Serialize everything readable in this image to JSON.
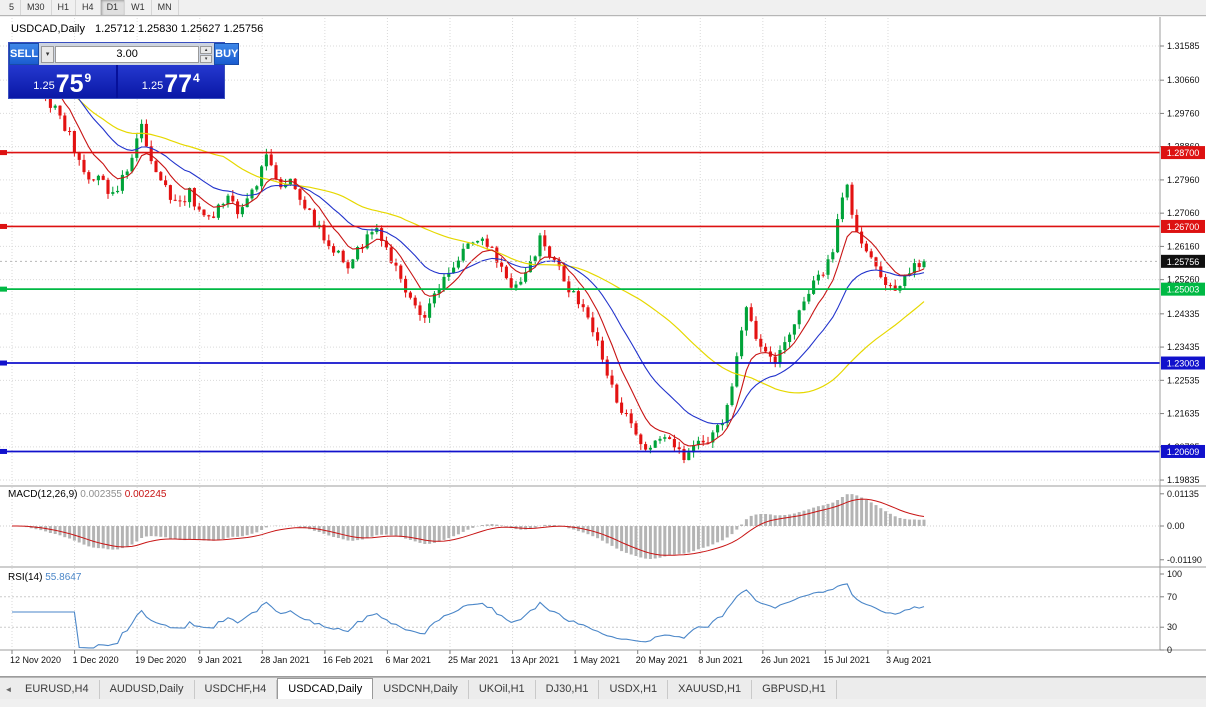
{
  "colors": {
    "bull": "#00a339",
    "bear": "#e31212",
    "ma_fast": "#c81414",
    "ma_mid": "#2233cc",
    "ma_slow": "#e6d800",
    "macd_hist": "#b4b4b4",
    "macd_signal": "#c81414",
    "rsi": "#4a86c8",
    "grid": "#dadada",
    "axis_text": "#111111",
    "separator": "#9c9c9c"
  },
  "icons": {
    "tab_scroll_left": "◄",
    "volume_dropdown": "▾",
    "stepper_up": "▴",
    "stepper_down": "▾"
  },
  "toolbar": {
    "timeframes": [
      {
        "label": "5"
      },
      {
        "label": "M30"
      },
      {
        "label": "H1"
      },
      {
        "label": "H4"
      },
      {
        "label": "D1",
        "active": true
      },
      {
        "label": "W1"
      },
      {
        "label": "MN"
      }
    ]
  },
  "chart": {
    "title_symbol": "USDCAD,Daily",
    "ohlc_text": "1.25712 1.25830 1.25627 1.25756",
    "open": "1.25712",
    "high": "1.25830",
    "low": "1.25627",
    "close": "1.25756"
  },
  "trade_panel": {
    "sell_label": "SELL",
    "buy_label": "BUY",
    "volume": "3.00",
    "sell_price": {
      "base": "1.25",
      "big": "75",
      "sup": "9",
      "full": "1.25759"
    },
    "buy_price": {
      "base": "1.25",
      "big": "77",
      "sup": "4",
      "full": "1.25774"
    }
  },
  "price_axis": {
    "ticks": [
      "1.31585",
      "1.30660",
      "1.29760",
      "1.28860",
      "1.27960",
      "1.27060",
      "1.26160",
      "1.25260",
      "1.24335",
      "1.23435",
      "1.22535",
      "1.21635",
      "1.20735",
      "1.19835"
    ],
    "current_price_badge": {
      "value": "1.25756",
      "color": "#101010"
    }
  },
  "levels": [
    {
      "value": 1.287,
      "label": "1.28700",
      "color": "#dd1111"
    },
    {
      "value": 1.267,
      "label": "1.26700",
      "color": "#dd1111"
    },
    {
      "value": 1.25003,
      "label": "1.25003",
      "color": "#00b944"
    },
    {
      "value": 1.23003,
      "label": "1.23003",
      "color": "#1111cc"
    },
    {
      "value": 1.20609,
      "label": "1.20609",
      "color": "#1111cc"
    }
  ],
  "indicators": {
    "macd": {
      "label": "MACD(12,26,9)",
      "value_main": "0.002355",
      "value_signal": "0.002245",
      "axis": [
        "0.01135",
        "0.00",
        "-0.01190"
      ]
    },
    "rsi": {
      "label": "RSI(14)",
      "value": "55.8647",
      "axis": [
        "100",
        "70",
        "30",
        "0"
      ],
      "levels": [
        70,
        30
      ]
    }
  },
  "date_axis": {
    "labels": [
      "12 Nov 2020",
      "1 Dec 2020",
      "19 Dec 2020",
      "9 Jan 2021",
      "28 Jan 2021",
      "16 Feb 2021",
      "6 Mar 2021",
      "25 Mar 2021",
      "13 Apr 2021",
      "1 May 2021",
      "20 May 2021",
      "8 Jun 2021",
      "26 Jun 2021",
      "15 Jul 2021",
      "3 Aug 2021"
    ]
  },
  "tabs": [
    {
      "label": "EURUSD,H4"
    },
    {
      "label": "AUDUSD,Daily"
    },
    {
      "label": "USDCHF,H4"
    },
    {
      "label": "USDCAD,Daily",
      "active": true
    },
    {
      "label": "USDCNH,Daily"
    },
    {
      "label": "UKOil,H1"
    },
    {
      "label": "DJ30,H1"
    },
    {
      "label": "USDX,H1"
    },
    {
      "label": "XAUUSD,H1"
    },
    {
      "label": "GBPUSD,H1"
    }
  ],
  "chart_data": {
    "type": "candlestick",
    "symbol": "USDCAD",
    "timeframe": "Daily",
    "title": "USDCAD,Daily 1.25712 1.25830 1.25627 1.25756",
    "ohlc_current": {
      "open": 1.25712,
      "high": 1.2583,
      "low": 1.25627,
      "close": 1.25756
    },
    "last_close": 1.25756,
    "x_range": [
      "12 Nov 2020",
      "3 Aug 2021"
    ],
    "y_range_approx": [
      1.1975,
      1.3202
    ],
    "horizontal_levels": [
      1.287,
      1.267,
      1.25003,
      1.23003,
      1.20609
    ],
    "moving_averages": [
      {
        "name": "slow-ma",
        "color": "#e6d800",
        "approx_period": 45
      },
      {
        "name": "medium-ma",
        "color": "#2233cc",
        "approx_period": 21
      },
      {
        "name": "fast-ma",
        "color": "#c81414",
        "approx_period": 8
      }
    ],
    "indicator_values": {
      "macd": [
        0.002355,
        0.002245
      ],
      "rsi": 55.8647
    },
    "price_path_anchors": [
      [
        0,
        1.3135
      ],
      [
        3,
        1.3098
      ],
      [
        6,
        1.304
      ],
      [
        8,
        1.3005
      ],
      [
        10,
        1.2962
      ],
      [
        12,
        1.2915
      ],
      [
        14,
        1.2845
      ],
      [
        16,
        1.28
      ],
      [
        18,
        1.281
      ],
      [
        20,
        1.2768
      ],
      [
        22,
        1.2778
      ],
      [
        24,
        1.2825
      ],
      [
        26,
        1.2905
      ],
      [
        27,
        1.294
      ],
      [
        29,
        1.2845
      ],
      [
        31,
        1.2795
      ],
      [
        33,
        1.2755
      ],
      [
        35,
        1.2725
      ],
      [
        37,
        1.2762
      ],
      [
        39,
        1.2705
      ],
      [
        41,
        1.2685
      ],
      [
        43,
        1.2722
      ],
      [
        45,
        1.2752
      ],
      [
        47,
        1.2705
      ],
      [
        49,
        1.2735
      ],
      [
        51,
        1.2792
      ],
      [
        53,
        1.2868
      ],
      [
        54,
        1.2825
      ],
      [
        56,
        1.2782
      ],
      [
        58,
        1.2792
      ],
      [
        60,
        1.2752
      ],
      [
        62,
        1.2705
      ],
      [
        64,
        1.2662
      ],
      [
        66,
        1.2615
      ],
      [
        68,
        1.2592
      ],
      [
        70,
        1.2548
      ],
      [
        72,
        1.2602
      ],
      [
        74,
        1.2642
      ],
      [
        76,
        1.2652
      ],
      [
        78,
        1.2605
      ],
      [
        80,
        1.2552
      ],
      [
        82,
        1.2485
      ],
      [
        84,
        1.2448
      ],
      [
        86,
        1.2425
      ],
      [
        88,
        1.2482
      ],
      [
        90,
        1.2532
      ],
      [
        92,
        1.2572
      ],
      [
        94,
        1.2598
      ],
      [
        96,
        1.2628
      ],
      [
        98,
        1.2638
      ],
      [
        100,
        1.2602
      ],
      [
        102,
        1.2562
      ],
      [
        104,
        1.2512
      ],
      [
        106,
        1.2532
      ],
      [
        108,
        1.2565
      ],
      [
        110,
        1.2632
      ],
      [
        112,
        1.2592
      ],
      [
        114,
        1.2552
      ],
      [
        116,
        1.2505
      ],
      [
        118,
        1.2468
      ],
      [
        120,
        1.2432
      ],
      [
        122,
        1.2352
      ],
      [
        124,
        1.2268
      ],
      [
        126,
        1.2205
      ],
      [
        128,
        1.2152
      ],
      [
        130,
        1.2102
      ],
      [
        132,
        1.2065
      ],
      [
        134,
        1.2088
      ],
      [
        136,
        1.2108
      ],
      [
        138,
        1.2062
      ],
      [
        140,
        1.2048
      ],
      [
        142,
        1.2082
      ],
      [
        144,
        1.2075
      ],
      [
        146,
        1.2105
      ],
      [
        148,
        1.2152
      ],
      [
        150,
        1.2248
      ],
      [
        152,
        1.2385
      ],
      [
        153,
        1.2452
      ],
      [
        155,
        1.2372
      ],
      [
        157,
        1.2318
      ],
      [
        159,
        1.2295
      ],
      [
        161,
        1.2365
      ],
      [
        163,
        1.2405
      ],
      [
        165,
        1.2455
      ],
      [
        167,
        1.2522
      ],
      [
        169,
        1.2538
      ],
      [
        171,
        1.2612
      ],
      [
        173,
        1.2748
      ],
      [
        174,
        1.2785
      ],
      [
        176,
        1.2645
      ],
      [
        178,
        1.2592
      ],
      [
        180,
        1.2565
      ],
      [
        182,
        1.2518
      ],
      [
        184,
        1.2492
      ],
      [
        186,
        1.2532
      ],
      [
        188,
        1.2562
      ],
      [
        190,
        1.25756
      ]
    ]
  }
}
